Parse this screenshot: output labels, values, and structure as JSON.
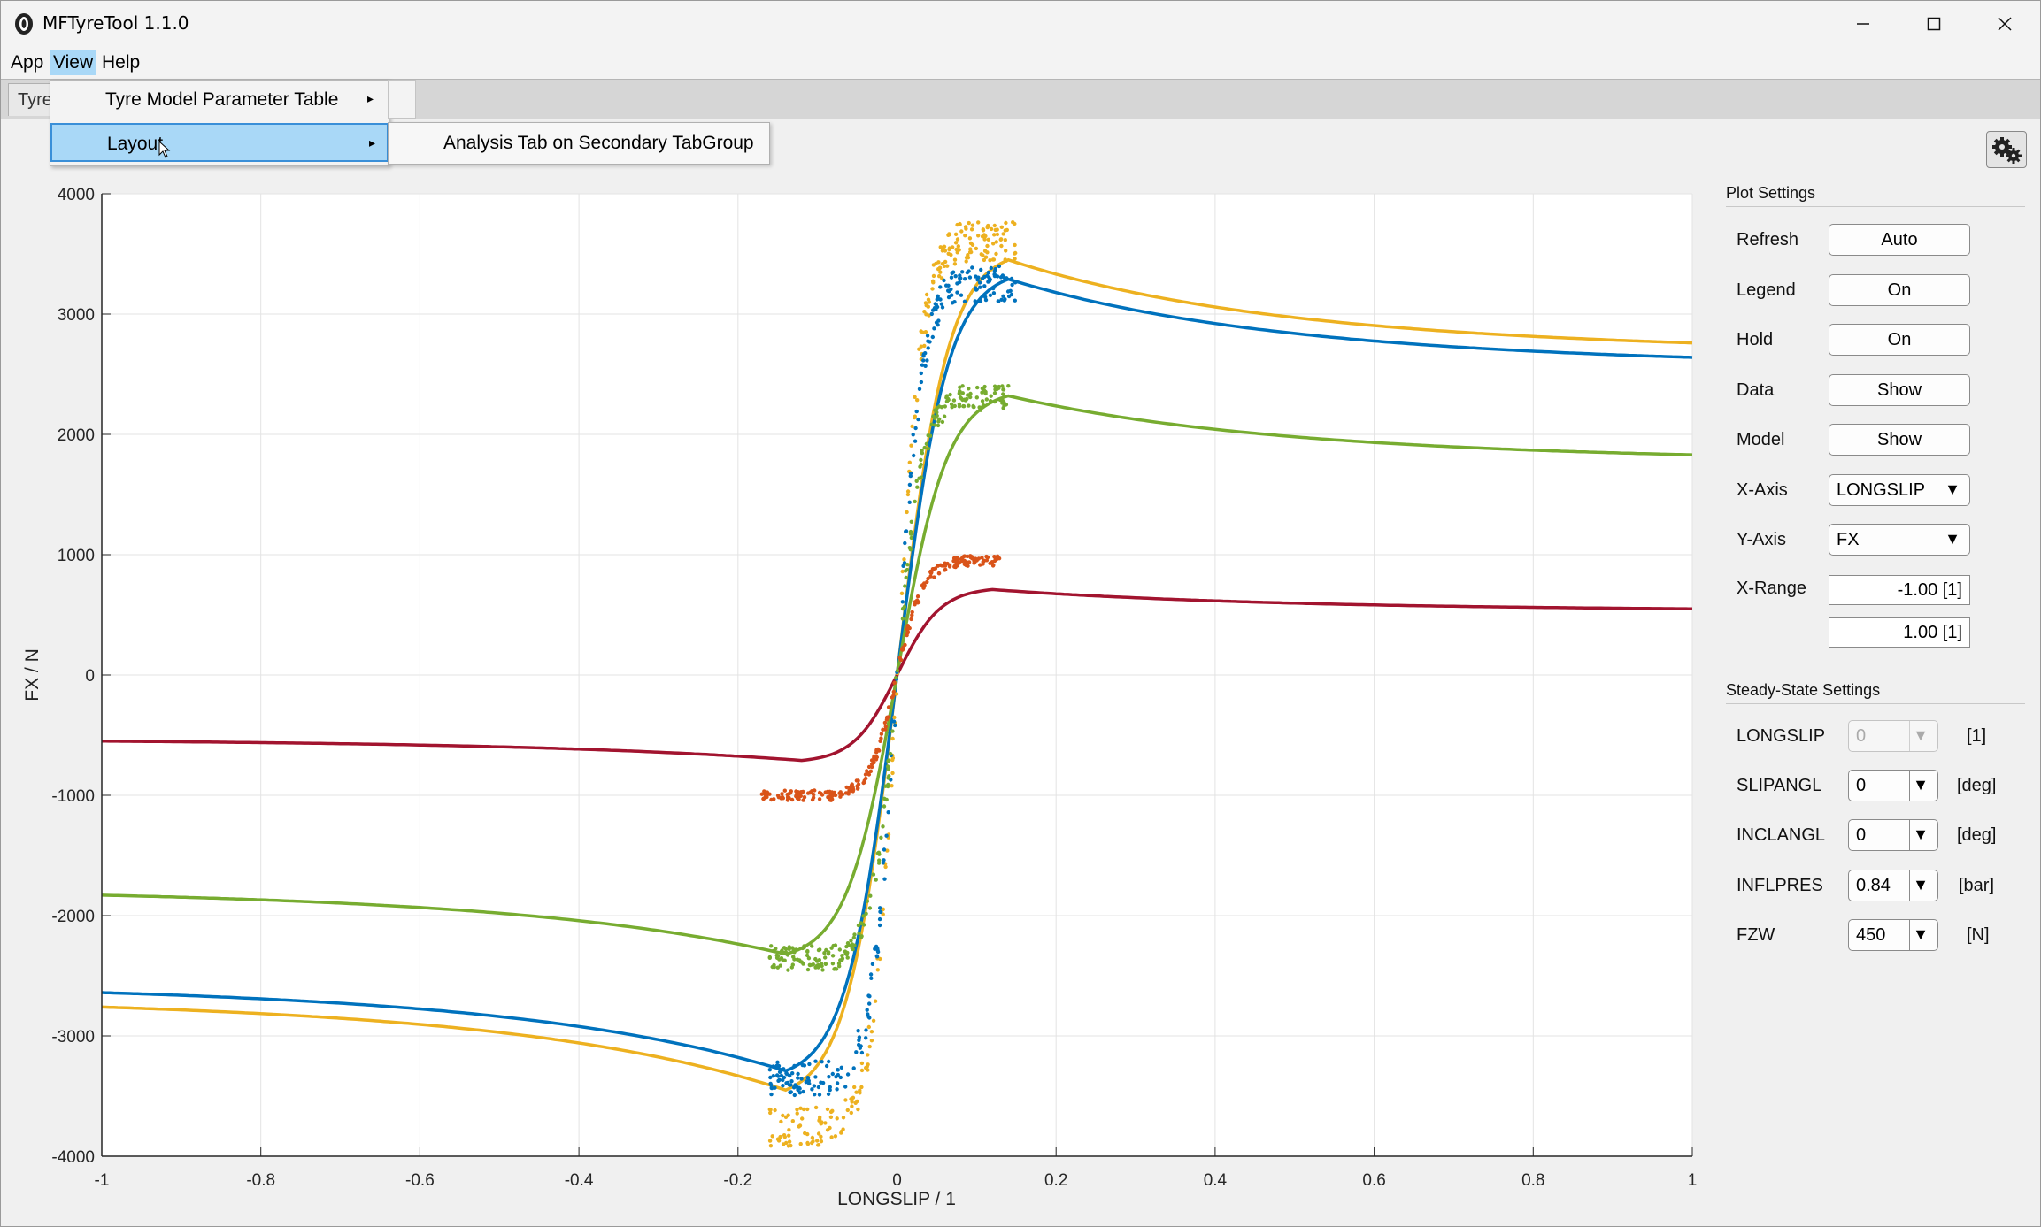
{
  "window": {
    "title": "MFTyreTool 1.1.0"
  },
  "menubar": {
    "items": [
      "App",
      "View",
      "Help"
    ],
    "active": "View"
  },
  "tabs": {
    "visible_partial": "Tyre"
  },
  "view_menu": {
    "items": [
      {
        "label": "Tyre Model Parameter Table",
        "has_submenu": true
      },
      {
        "label": "Layout",
        "has_submenu": true,
        "highlighted": true
      }
    ],
    "layout_submenu": [
      "Analysis Tab on Secondary TabGroup"
    ]
  },
  "plot_settings": {
    "title": "Plot Settings",
    "rows": [
      {
        "label": "Refresh",
        "value": "Auto",
        "kind": "button"
      },
      {
        "label": "Legend",
        "value": "On",
        "kind": "button"
      },
      {
        "label": "Hold",
        "value": "On",
        "kind": "button"
      },
      {
        "label": "Data",
        "value": "Show",
        "kind": "button"
      },
      {
        "label": "Model",
        "value": "Show",
        "kind": "button"
      },
      {
        "label": "X-Axis",
        "value": "LONGSLIP",
        "kind": "dropdown"
      },
      {
        "label": "Y-Axis",
        "value": "FX",
        "kind": "dropdown"
      },
      {
        "label": "X-Range",
        "value": "-1.00 [1]",
        "kind": "field"
      },
      {
        "label": "",
        "value": "1.00 [1]",
        "kind": "field"
      }
    ]
  },
  "steady_state": {
    "title": "Steady-State Settings",
    "rows": [
      {
        "label": "LONGSLIP",
        "value": "0",
        "unit": "[1]",
        "disabled": true
      },
      {
        "label": "SLIPANGL",
        "value": "0",
        "unit": "[deg]",
        "disabled": false
      },
      {
        "label": "INCLANGL",
        "value": "0",
        "unit": "[deg]",
        "disabled": false
      },
      {
        "label": "INFLPRES",
        "value": "0.84",
        "unit": "[bar]",
        "disabled": false
      },
      {
        "label": "FZW",
        "value": "450",
        "unit": "[N]",
        "disabled": false
      }
    ]
  },
  "chart_data": {
    "type": "line",
    "xlabel": "LONGSLIP / 1",
    "ylabel": "FX / N",
    "xlim": [
      -1,
      1
    ],
    "ylim": [
      -4000,
      4000
    ],
    "xticks": [
      "-1",
      "-0.8",
      "-0.6",
      "-0.4",
      "-0.2",
      "0",
      "0.2",
      "0.4",
      "0.6",
      "0.8",
      "1"
    ],
    "yticks": [
      "4000",
      "3000",
      "2000",
      "1000",
      "0",
      "-1000",
      "-2000",
      "-3000",
      "-4000"
    ],
    "grid": true,
    "colors": {
      "yellow": "#EDB120",
      "blue": "#0072BD",
      "green": "#77AC30",
      "red": "#A2142F",
      "orange": "#D95319"
    },
    "model_curves": [
      {
        "color": "yellow",
        "peak": 3450,
        "slip_peak": 0.14,
        "tail": 2760
      },
      {
        "color": "blue",
        "peak": 3290,
        "slip_peak": 0.14,
        "tail": 2640
      },
      {
        "color": "green",
        "peak": 2320,
        "slip_peak": 0.14,
        "tail": 1830
      },
      {
        "color": "red",
        "peak": 710,
        "slip_peak": 0.12,
        "tail": 550
      }
    ],
    "measured_data": [
      {
        "color": "yellow",
        "slip_range": [
          -0.16,
          0.15
        ],
        "fx_min": -3750,
        "fx_max": 3600
      },
      {
        "color": "blue",
        "slip_range": [
          -0.16,
          0.15
        ],
        "fx_min": -3350,
        "fx_max": 3250
      },
      {
        "color": "green",
        "slip_range": [
          -0.16,
          0.14
        ],
        "fx_min": -2350,
        "fx_max": 2300
      },
      {
        "color": "orange",
        "slip_range": [
          -0.17,
          0.13
        ],
        "fx_min": -1000,
        "fx_max": 950
      }
    ]
  }
}
